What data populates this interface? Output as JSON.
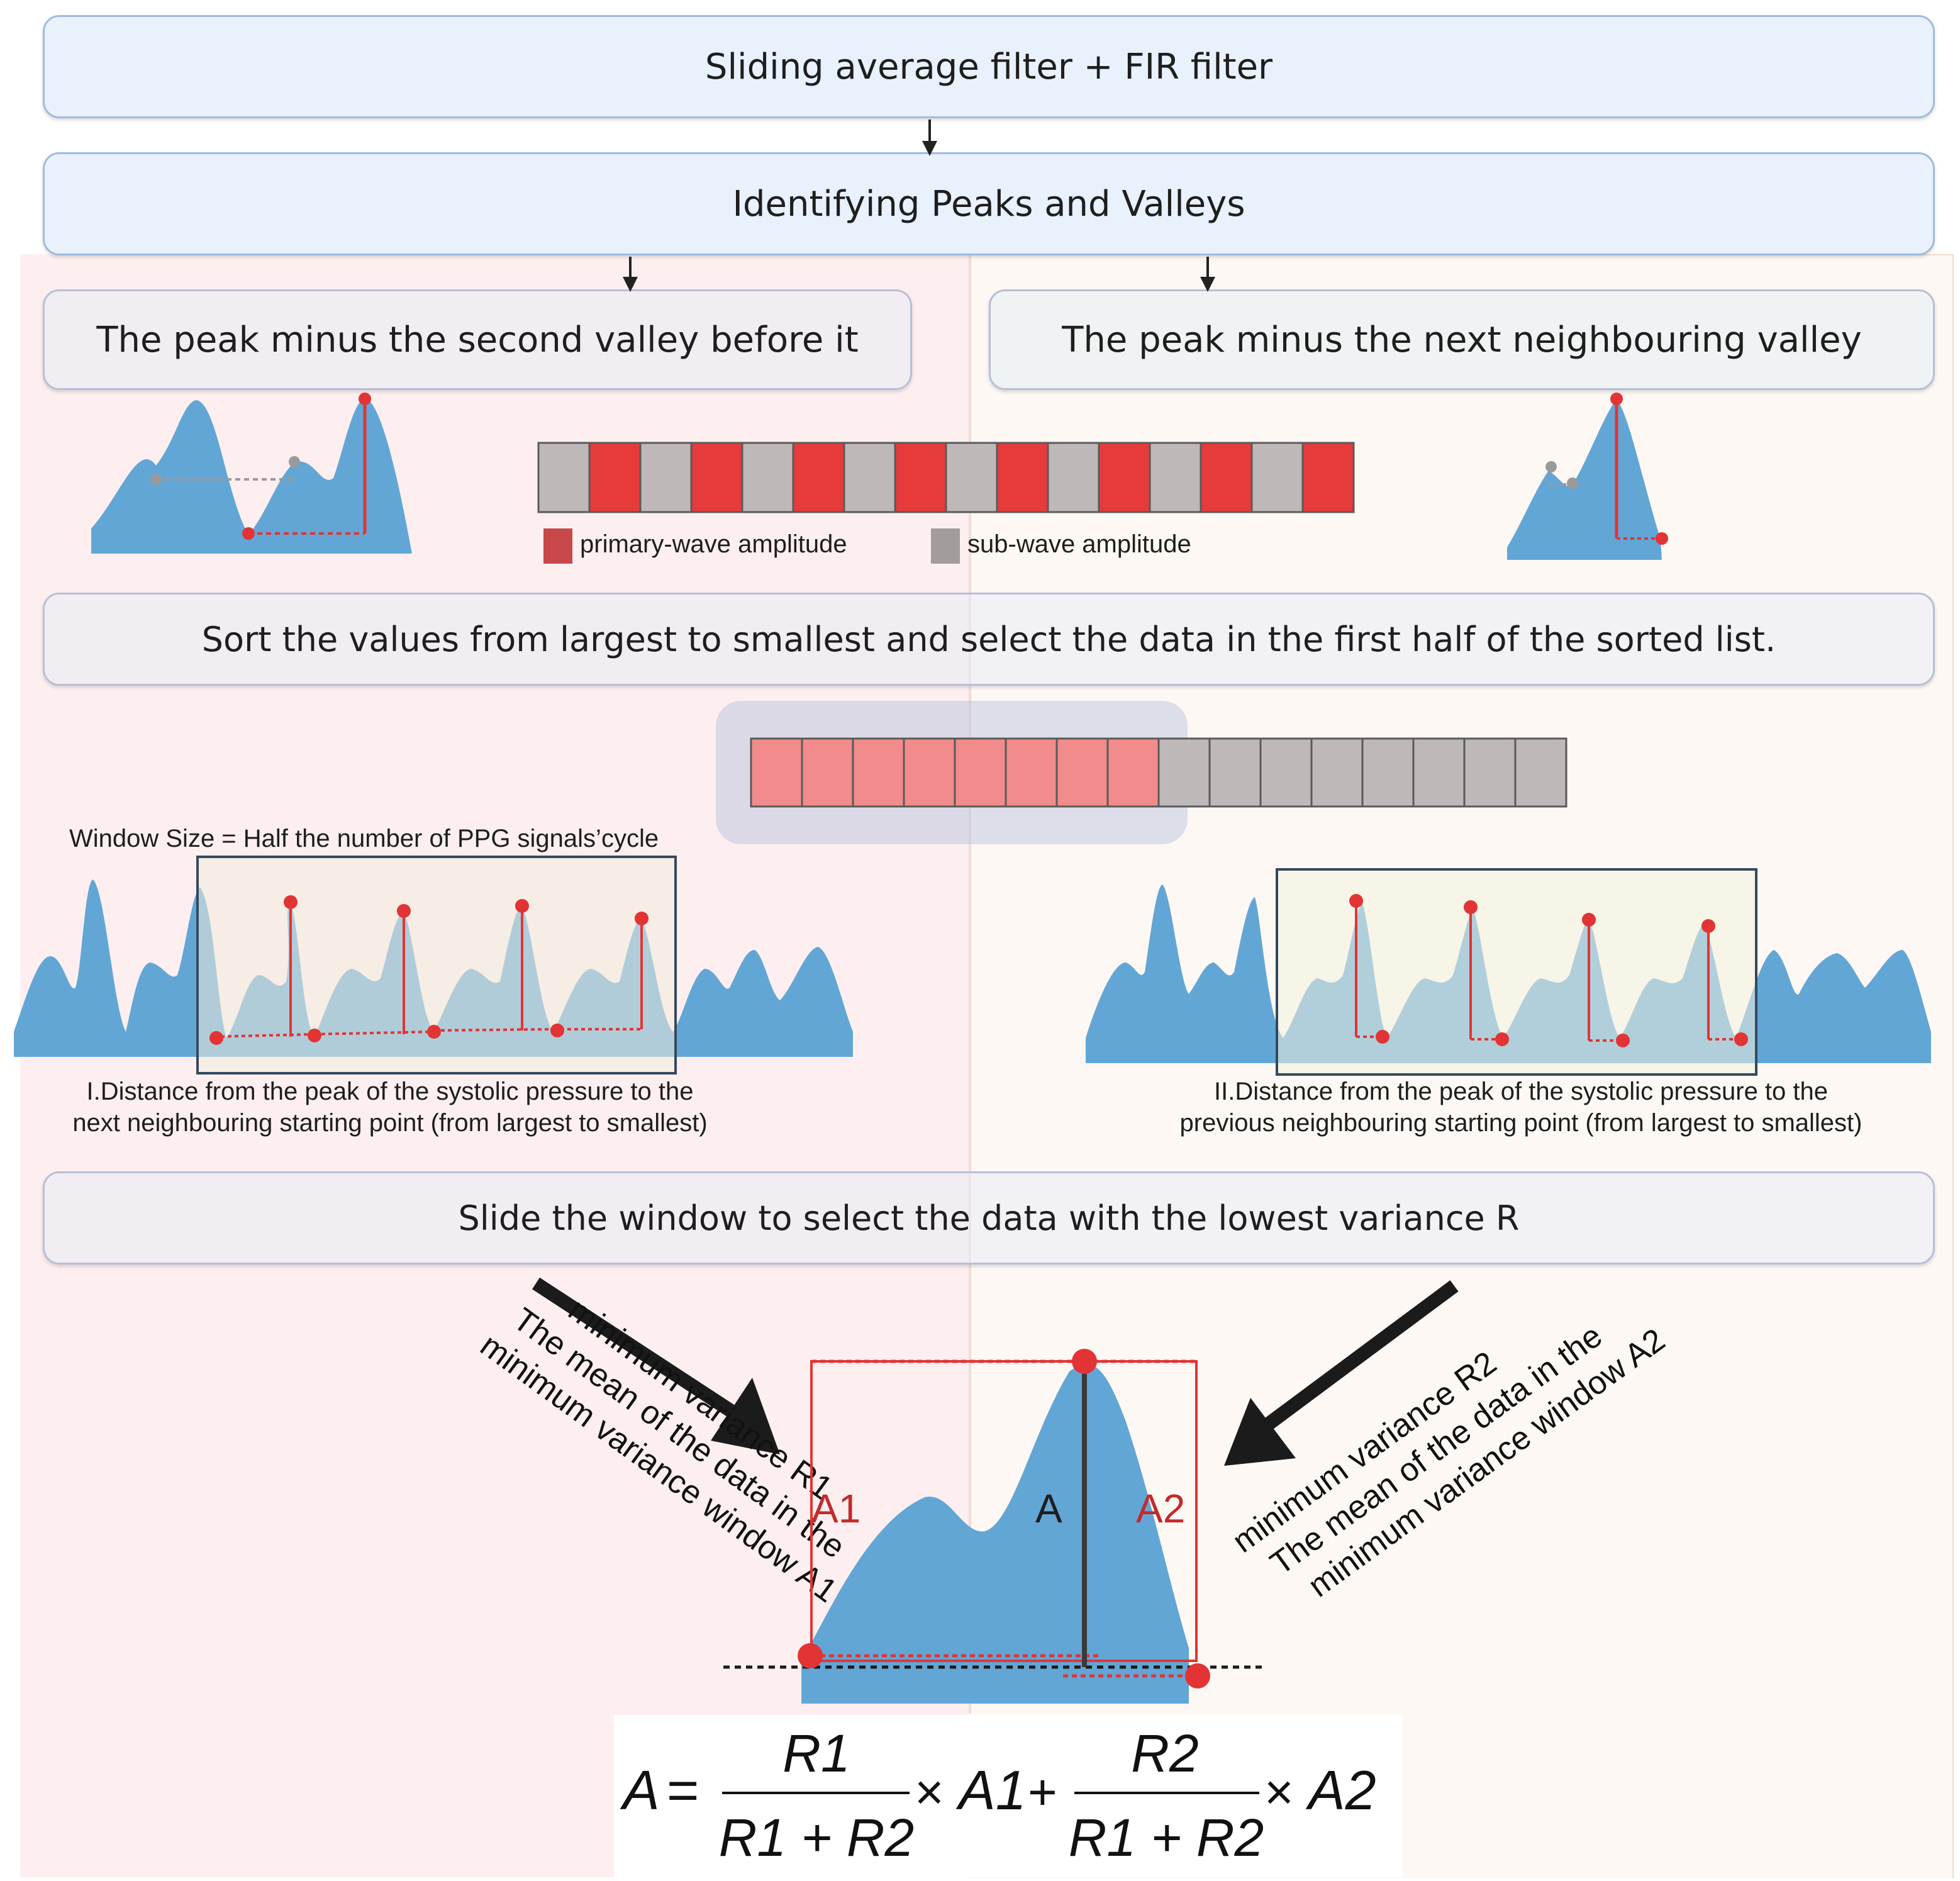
{
  "steps": {
    "filter": "Sliding average filter + FIR filter",
    "peaks": "Identifying Peaks and Valleys",
    "left_method": "The peak minus the second valley before it",
    "right_method": "The peak minus the next neighbouring valley",
    "sort": "Sort the values from largest to smallest and select the data in the first half of the sorted list.",
    "slide": "Slide the window to select the data with the lowest variance R"
  },
  "legend": {
    "primary": "primary-wave amplitude",
    "sub": "sub-wave amplitude"
  },
  "window_size_label": "Window Size = Half the number of PPG signals’cycle",
  "caption_left": {
    "line1": "I.Distance from the peak of the systolic pressure to the",
    "line2": "next neighbouring starting point (from largest to smallest)"
  },
  "caption_right": {
    "line1": "II.Distance from the peak of the systolic pressure to the",
    "line2": "previous neighbouring starting point (from largest to smallest)"
  },
  "arrow_left_text": {
    "line1": "minimum variance R1",
    "line2": "The mean of the data in the",
    "line3": "minimum variance window A1"
  },
  "arrow_right_text": {
    "line1": "minimum variance R2",
    "line2": "The mean of the data in the",
    "line3": "minimum variance window A2"
  },
  "labels": {
    "a1": "A1",
    "a": "A",
    "a2": "A2"
  },
  "formula": {
    "lhs": "A",
    "eq": "=",
    "r1": "R1",
    "r2": "R2",
    "den": "R1 + R2",
    "times": "×",
    "plus": "+",
    "a1": "A1",
    "a2": "A2"
  },
  "colors": {
    "primary": "#e73a3b",
    "sub": "#bfb8b8",
    "sorted_primary": "#f28b8b",
    "wave": "#62a6d6",
    "marker": "#e23434"
  },
  "amplitude_sequence": [
    "sub",
    "primary",
    "sub",
    "primary",
    "sub",
    "primary",
    "sub",
    "primary",
    "sub",
    "primary",
    "sub",
    "primary",
    "sub",
    "primary",
    "sub",
    "primary"
  ],
  "sorted_sequence": [
    "primary",
    "primary",
    "primary",
    "primary",
    "primary",
    "primary",
    "primary",
    "primary",
    "sub",
    "sub",
    "sub",
    "sub",
    "sub",
    "sub",
    "sub",
    "sub"
  ]
}
